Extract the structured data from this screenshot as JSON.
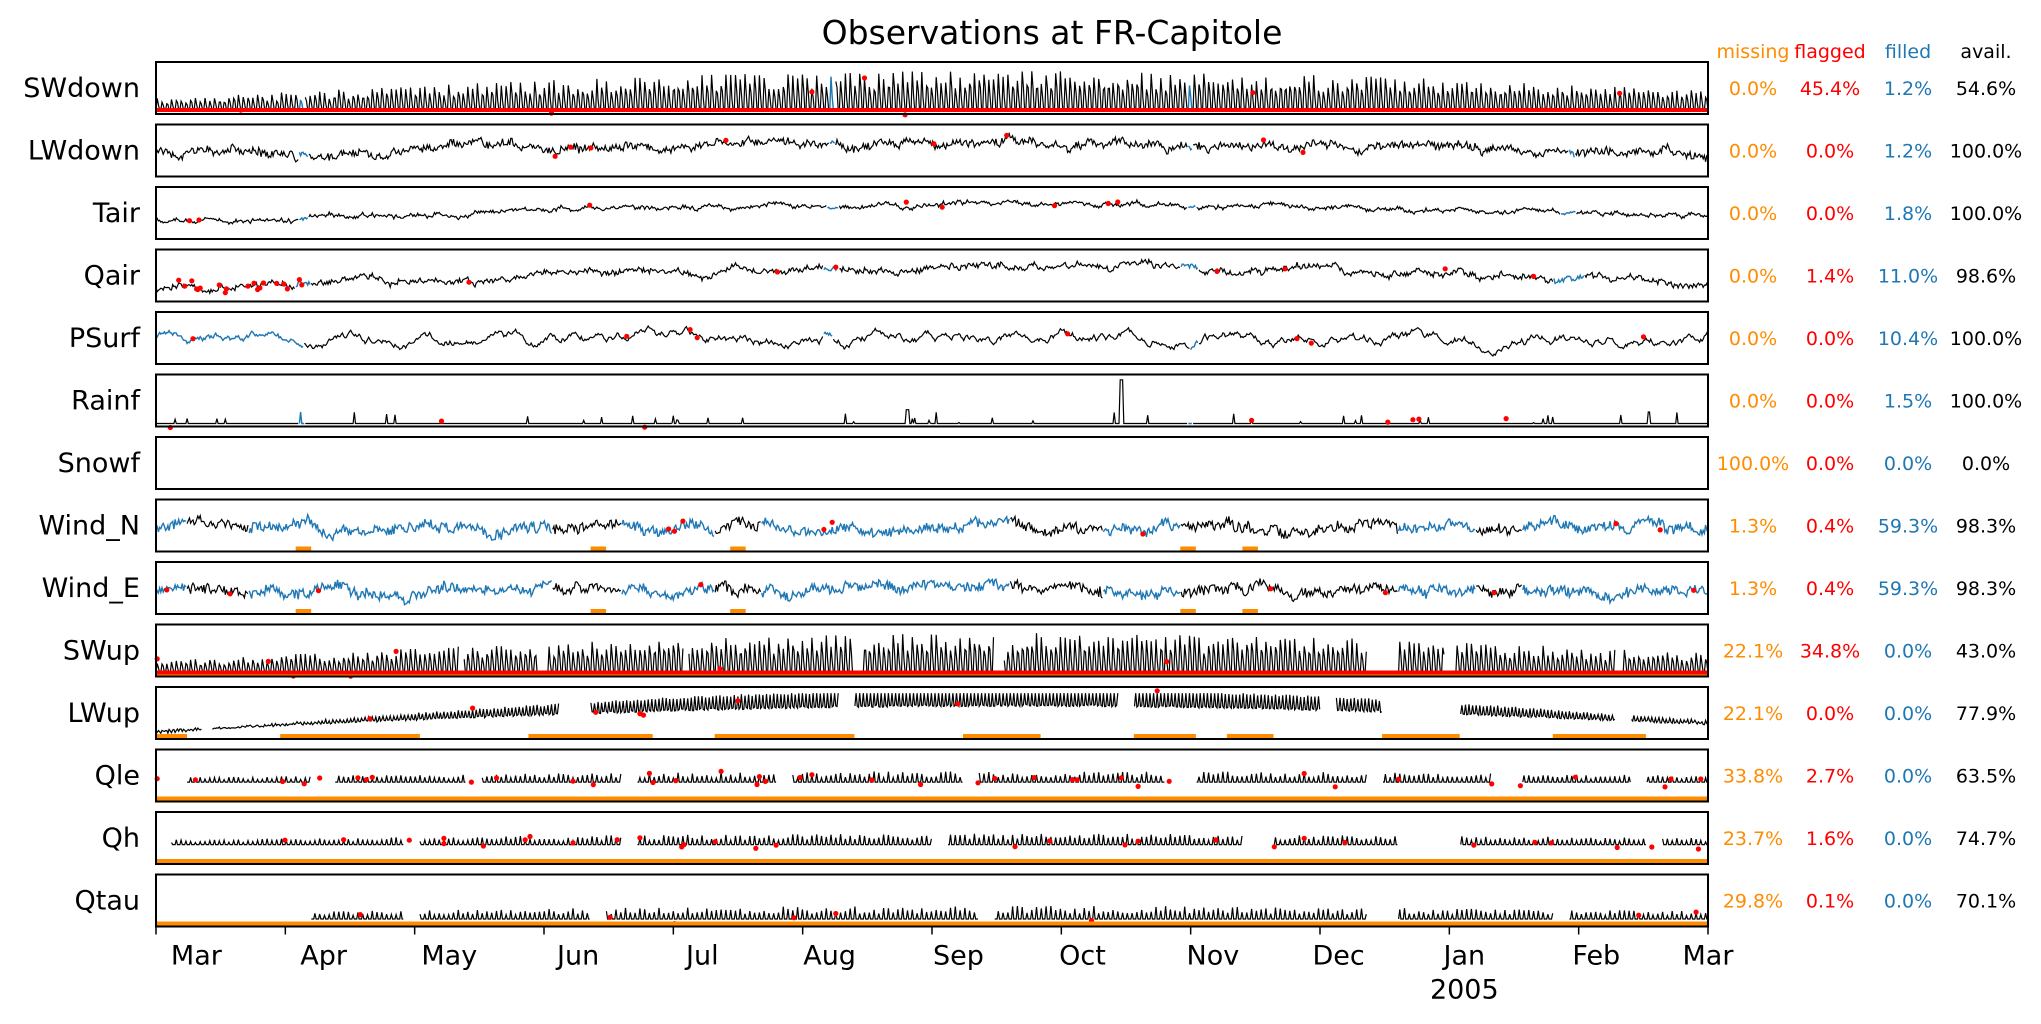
{
  "chart_data": {
    "type": "line",
    "title": "Observations at FR-Capitole",
    "x_ticks": [
      "Mar",
      "Apr",
      "May",
      "Jun",
      "Jul",
      "Aug",
      "Sep",
      "Oct",
      "Nov",
      "Dec",
      "Jan",
      "Feb",
      "Mar"
    ],
    "x_tick_fracs": [
      0.026,
      0.108,
      0.189,
      0.272,
      0.352,
      0.434,
      0.517,
      0.597,
      0.681,
      0.762,
      0.843,
      0.928,
      1.0
    ],
    "x_year_label": "2005",
    "x_year_tick_index": 10,
    "columns": {
      "missing": "missing",
      "flagged": "flagged",
      "filled": "filled",
      "avail": "avail."
    },
    "colors": {
      "observed": "#000000",
      "missing": "#ff8c00",
      "flagged": "#ff0000",
      "filled": "#1f77b4"
    },
    "variables": [
      {
        "name": "SWdown",
        "missing": "0.0%",
        "flagged": "45.4%",
        "filled": "1.2%",
        "avail": "54.6%"
      },
      {
        "name": "LWdown",
        "missing": "0.0%",
        "flagged": "0.0%",
        "filled": "1.2%",
        "avail": "100.0%"
      },
      {
        "name": "Tair",
        "missing": "0.0%",
        "flagged": "0.0%",
        "filled": "1.8%",
        "avail": "100.0%"
      },
      {
        "name": "Qair",
        "missing": "0.0%",
        "flagged": "1.4%",
        "filled": "11.0%",
        "avail": "98.6%"
      },
      {
        "name": "PSurf",
        "missing": "0.0%",
        "flagged": "0.0%",
        "filled": "10.4%",
        "avail": "100.0%"
      },
      {
        "name": "Rainf",
        "missing": "0.0%",
        "flagged": "0.0%",
        "filled": "1.5%",
        "avail": "100.0%"
      },
      {
        "name": "Snowf",
        "missing": "100.0%",
        "flagged": "0.0%",
        "filled": "0.0%",
        "avail": "0.0%"
      },
      {
        "name": "Wind_N",
        "missing": "1.3%",
        "flagged": "0.4%",
        "filled": "59.3%",
        "avail": "98.3%"
      },
      {
        "name": "Wind_E",
        "missing": "1.3%",
        "flagged": "0.4%",
        "filled": "59.3%",
        "avail": "98.3%"
      },
      {
        "name": "SWup",
        "missing": "22.1%",
        "flagged": "34.8%",
        "filled": "0.0%",
        "avail": "43.0%"
      },
      {
        "name": "LWup",
        "missing": "22.1%",
        "flagged": "0.0%",
        "filled": "0.0%",
        "avail": "77.9%"
      },
      {
        "name": "Qle",
        "missing": "33.8%",
        "flagged": "2.7%",
        "filled": "0.0%",
        "avail": "63.5%"
      },
      {
        "name": "Qh",
        "missing": "23.7%",
        "flagged": "1.6%",
        "filled": "0.0%",
        "avail": "74.7%"
      },
      {
        "name": "Qtau",
        "missing": "29.8%",
        "flagged": "0.1%",
        "filled": "0.0%",
        "avail": "70.1%"
      }
    ]
  }
}
